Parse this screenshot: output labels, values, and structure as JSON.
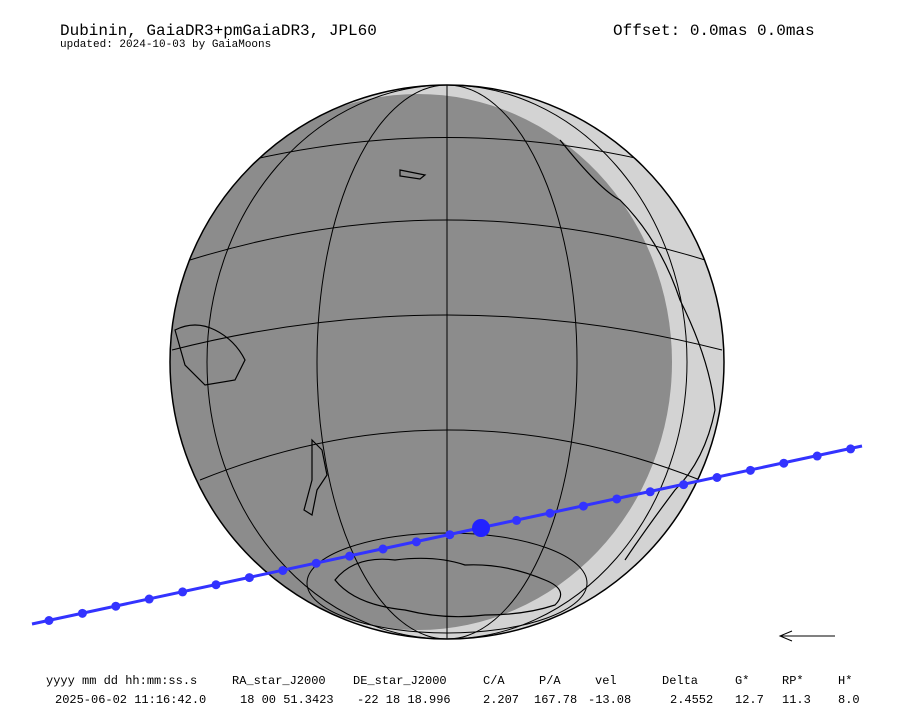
{
  "header": {
    "title": "Dubinin, GaiaDR3+pmGaiaDR3, JPL60",
    "subtitle": "updated: 2024-10-03 by GaiaMoons",
    "offset": "Offset: 0.0mas 0.0mas"
  },
  "table": {
    "columns": [
      "yyyy mm dd hh:mm:ss.s",
      "RA_star_J2000",
      "DE_star_J2000",
      "C/A",
      "P/A",
      "vel",
      "Delta",
      "G*",
      "RP*",
      "H*"
    ],
    "row": [
      "2025-06-02 11:16:42.0",
      "18 00 51.3423",
      "-22 18 18.996",
      "2.207",
      "167.78",
      "-13.08",
      "2.4552",
      "12.7",
      "11.3",
      "8.0"
    ]
  }
}
